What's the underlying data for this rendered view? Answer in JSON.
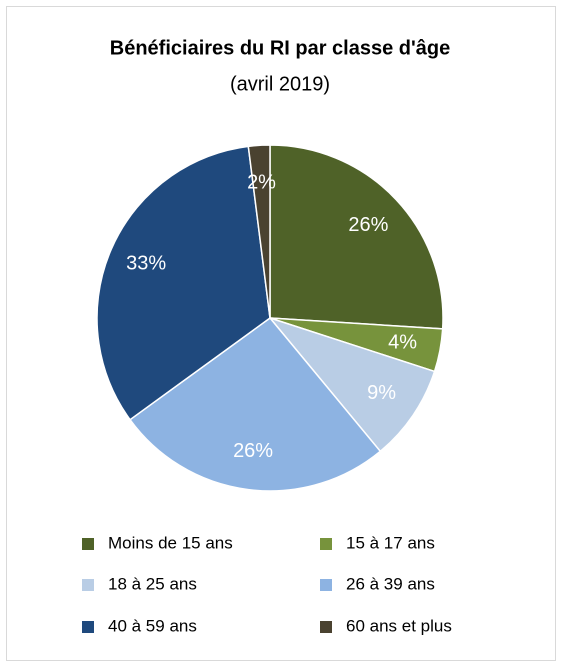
{
  "chart_data": {
    "type": "pie",
    "title": "Bénéficiaires du RI par classe d'âge",
    "subtitle": "(avril 2019)",
    "categories": [
      "Moins de 15 ans",
      "15 à 17 ans",
      "18 à 25 ans",
      "26 à 39 ans",
      "40 à 59 ans",
      "60 ans et plus"
    ],
    "values": [
      26,
      4,
      9,
      26,
      33,
      2
    ],
    "value_labels": [
      "26%",
      "4%",
      "9%",
      "26%",
      "33%",
      "2%"
    ],
    "colors": [
      "#4f6228",
      "#77933c",
      "#b9cde5",
      "#8db3e2",
      "#1f497d",
      "#4a4230"
    ],
    "legend": "bottom"
  }
}
